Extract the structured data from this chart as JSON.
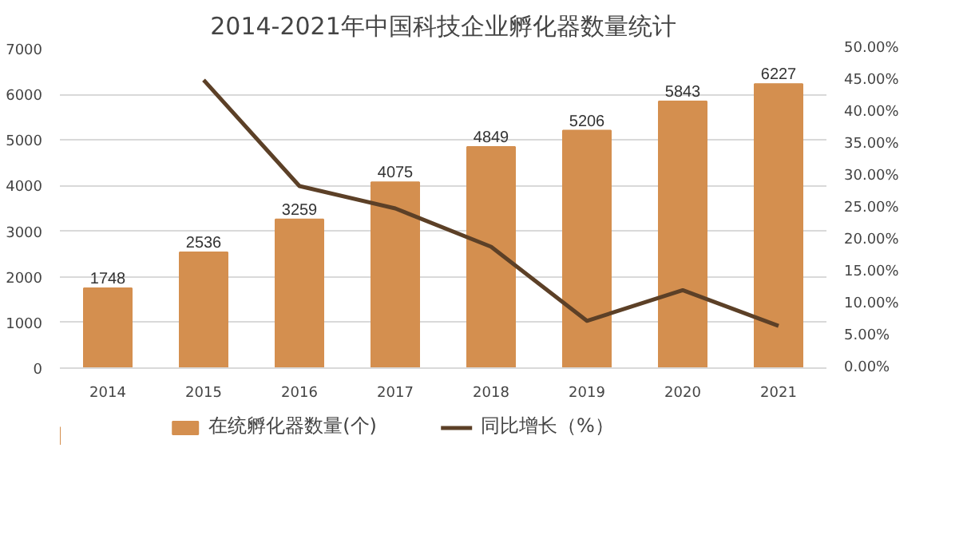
{
  "chart_data": {
    "type": "bar",
    "title": "2014-2021年中国科技企业孵化器数量统计",
    "categories": [
      "2014",
      "2015",
      "2016",
      "2017",
      "2018",
      "2019",
      "2020",
      "2021"
    ],
    "series": [
      {
        "name": "在统孵化器数量(个)",
        "color": "#d48f4f",
        "values": [
          1748,
          2536,
          3259,
          4075,
          4849,
          5206,
          5843,
          6227
        ],
        "data_labels": true
      },
      {
        "name": "同比增长（%）",
        "type": "line",
        "axis": "y2",
        "color": "#5c4027",
        "values": [
          null,
          45.1,
          28.5,
          25.0,
          19.0,
          7.4,
          12.2,
          6.6
        ]
      }
    ],
    "ylim": [
      0,
      7000
    ],
    "yticks": [
      0,
      1000,
      2000,
      3000,
      4000,
      5000,
      6000,
      7000
    ],
    "y2lim": [
      0,
      50
    ],
    "y2ticks": [
      {
        "value": 0,
        "label": "0.00%"
      },
      {
        "value": 5,
        "label": "5.00%"
      },
      {
        "value": 10,
        "label": "10.00%"
      },
      {
        "value": 15,
        "label": "15.00%"
      },
      {
        "value": 20,
        "label": "20.00%"
      },
      {
        "value": 25,
        "label": "25.00%"
      },
      {
        "value": 30,
        "label": "30.00%"
      },
      {
        "value": 35,
        "label": "35.00%"
      },
      {
        "value": 40,
        "label": "40.00%"
      },
      {
        "value": 45,
        "label": "45.00%"
      },
      {
        "value": 50,
        "label": "50.00%"
      }
    ],
    "grid": "y",
    "legend": "bottom",
    "marker": "none",
    "line_style": "solid"
  }
}
